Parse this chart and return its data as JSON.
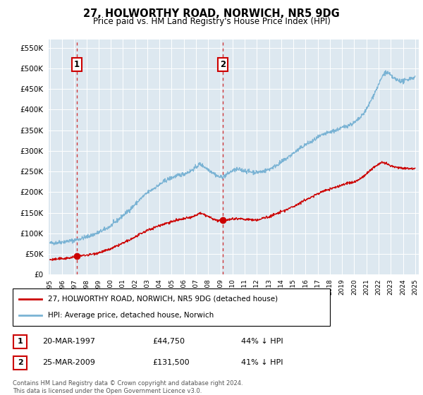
{
  "title": "27, HOLWORTHY ROAD, NORWICH, NR5 9DG",
  "subtitle": "Price paid vs. HM Land Registry's House Price Index (HPI)",
  "legend_line1": "27, HOLWORTHY ROAD, NORWICH, NR5 9DG (detached house)",
  "legend_line2": "HPI: Average price, detached house, Norwich",
  "table_row1": [
    "1",
    "20-MAR-1997",
    "£44,750",
    "44% ↓ HPI"
  ],
  "table_row2": [
    "2",
    "25-MAR-2009",
    "£131,500",
    "41% ↓ HPI"
  ],
  "footnote": "Contains HM Land Registry data © Crown copyright and database right 2024.\nThis data is licensed under the Open Government Licence v3.0.",
  "sale1_year": 1997.22,
  "sale1_price": 44750,
  "sale2_year": 2009.23,
  "sale2_price": 131500,
  "hpi_color": "#7ab3d4",
  "price_color": "#cc0000",
  "dashed_color": "#cc0000",
  "plot_bg_color": "#dde8f0",
  "ylim_min": 0,
  "ylim_max": 570000,
  "yticks": [
    0,
    50000,
    100000,
    150000,
    200000,
    250000,
    300000,
    350000,
    400000,
    450000,
    500000,
    550000
  ],
  "xlabel_years": [
    1995,
    1996,
    1997,
    1998,
    1999,
    2000,
    2001,
    2002,
    2003,
    2004,
    2005,
    2006,
    2007,
    2008,
    2009,
    2010,
    2011,
    2012,
    2013,
    2014,
    2015,
    2016,
    2017,
    2018,
    2019,
    2020,
    2021,
    2022,
    2023,
    2024,
    2025
  ]
}
